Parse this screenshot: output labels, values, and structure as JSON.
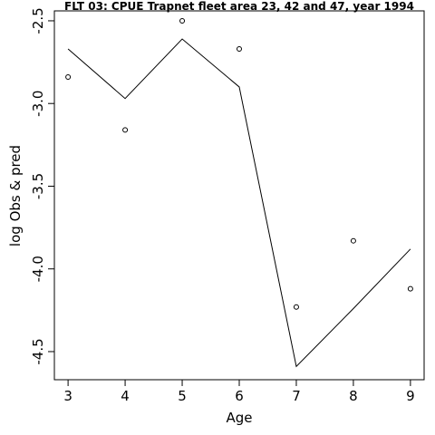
{
  "chart_data": {
    "type": "line",
    "title": "FLT 03: CPUE Trapnet fleet area 23, 42 and 47, year 1994",
    "xlabel": "Age",
    "ylabel": "log Obs & pred",
    "xlim": [
      2.76,
      9.24
    ],
    "ylim": [
      -4.67,
      -2.44
    ],
    "x_ticks": [
      3,
      4,
      5,
      6,
      7,
      8,
      9
    ],
    "y_ticks": [
      -2.5,
      -3.0,
      -3.5,
      -4.0,
      -4.5
    ],
    "x_tick_labels": [
      "3",
      "4",
      "5",
      "6",
      "7",
      "8",
      "9"
    ],
    "y_tick_labels": [
      "-2.5",
      "-3.0",
      "-3.5",
      "-4.0",
      "-4.5"
    ],
    "grid": false,
    "series": [
      {
        "style": "line",
        "x": [
          3,
          4,
          5,
          6,
          7,
          8,
          9
        ],
        "y": [
          -2.67,
          -2.97,
          -2.61,
          -2.9,
          -4.59,
          -4.24,
          -3.88
        ]
      },
      {
        "style": "points",
        "x": [
          3,
          4,
          5,
          6,
          7,
          8,
          9
        ],
        "y": [
          -2.84,
          -3.16,
          -2.5,
          -2.67,
          -4.23,
          -3.83,
          -4.12
        ]
      }
    ]
  }
}
